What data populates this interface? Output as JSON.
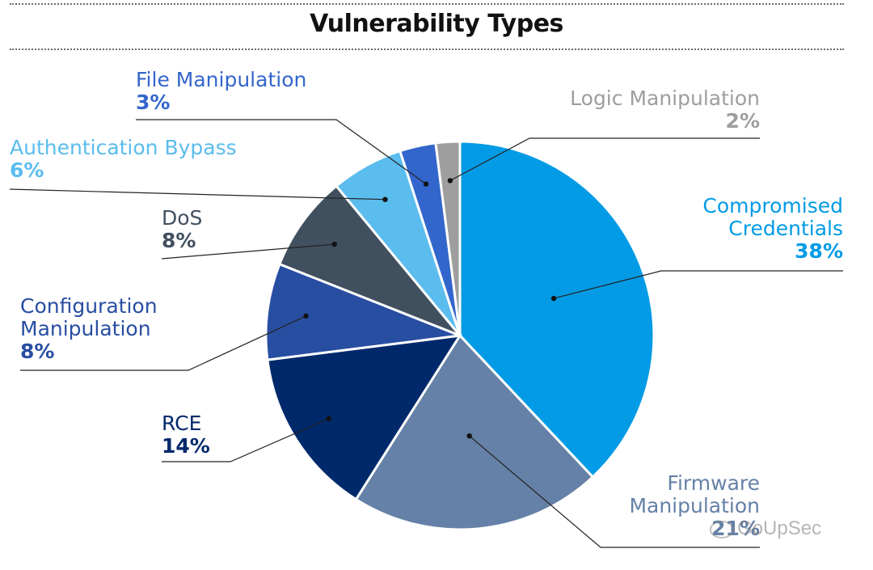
{
  "chart_data": {
    "type": "pie",
    "title": "Vulnerability Types",
    "slices": [
      {
        "key": "compromised-credentials",
        "label": [
          "Compromised",
          "Credentials"
        ],
        "value": 38,
        "value_label": "38%",
        "color": "#039be5"
      },
      {
        "key": "firmware-manipulation",
        "label": [
          "Firmware",
          "Manipulation"
        ],
        "value": 21,
        "value_label": "21%",
        "color": "#6581a7"
      },
      {
        "key": "rce",
        "label": [
          "RCE"
        ],
        "value": 14,
        "value_label": "14%",
        "color": "#00296b"
      },
      {
        "key": "configuration-manipulation",
        "label": [
          "Configuration",
          "Manipulation"
        ],
        "value": 8,
        "value_label": "8%",
        "color": "#284ea2"
      },
      {
        "key": "dos",
        "label": [
          "DoS"
        ],
        "value": 8,
        "value_label": "8%",
        "color": "#41505f"
      },
      {
        "key": "authentication-bypass",
        "label": [
          "Authentication Bypass"
        ],
        "value": 6,
        "value_label": "6%",
        "color": "#5bbcee"
      },
      {
        "key": "file-manipulation",
        "label": [
          "File Manipulation"
        ],
        "value": 3,
        "value_label": "3%",
        "color": "#3366cc"
      },
      {
        "key": "logic-manipulation",
        "label": [
          "Logic Manipulation"
        ],
        "value": 2,
        "value_label": "2%",
        "color": "#9e9e9e"
      }
    ]
  },
  "watermark": {
    "text": "GoUpSec",
    "icon": "wechat-icon"
  }
}
